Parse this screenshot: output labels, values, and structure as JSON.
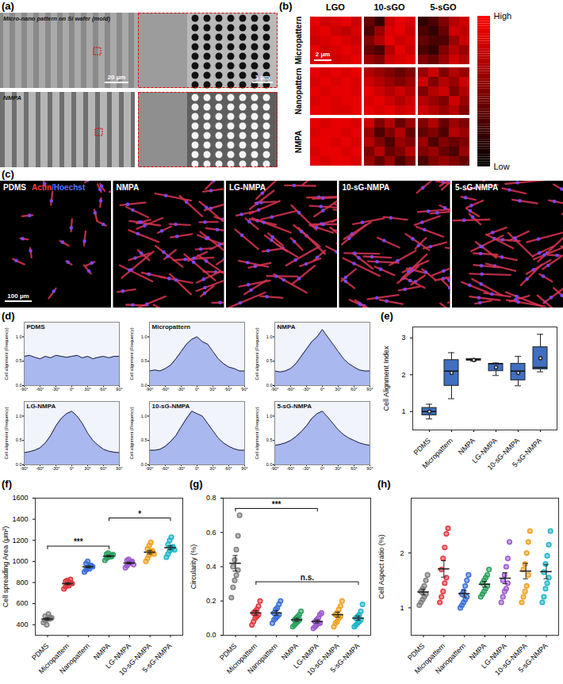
{
  "chart_data": [
    {
      "type": "image",
      "panel": "(a)",
      "labels": [
        "Micro-nano pattern on Si wafer (mold)",
        "NMPA"
      ],
      "scale_bars": [
        "20 µm",
        "1 µm"
      ]
    },
    {
      "type": "heatmap",
      "panel": "(b)",
      "columns": [
        "LGO",
        "10-sGO",
        "5-sGO"
      ],
      "rows": [
        "Micropattern",
        "Nanopattern",
        "NMPA"
      ],
      "cells": [
        [
          [
            [
              0.9,
              0.8,
              0.85,
              0.9,
              0.8
            ],
            [
              0.85,
              0.9,
              0.8,
              0.75,
              0.85
            ],
            [
              0.8,
              0.85,
              0.9,
              0.85,
              0.8
            ],
            [
              0.9,
              0.8,
              0.85,
              0.9,
              0.85
            ],
            [
              0.85,
              0.9,
              0.8,
              0.85,
              0.9
            ]
          ],
          [
            [
              0.4,
              0.2,
              0.8,
              0.9,
              0.85
            ],
            [
              0.3,
              0.6,
              0.85,
              0.9,
              0.8
            ],
            [
              0.5,
              0.7,
              0.9,
              0.8,
              0.85
            ],
            [
              0.4,
              0.3,
              0.7,
              0.9,
              0.8
            ],
            [
              0.6,
              0.5,
              0.8,
              0.85,
              0.9
            ]
          ],
          [
            [
              0.2,
              0.3,
              0.5,
              0.7,
              0.8
            ],
            [
              0.3,
              0.2,
              0.4,
              0.8,
              0.75
            ],
            [
              0.4,
              0.3,
              0.3,
              0.6,
              0.8
            ],
            [
              0.3,
              0.2,
              0.5,
              0.7,
              0.6
            ],
            [
              0.5,
              0.4,
              0.6,
              0.8,
              0.7
            ]
          ]
        ],
        [
          [
            [
              0.9,
              0.85,
              0.9,
              0.85,
              0.9
            ],
            [
              0.85,
              0.9,
              0.85,
              0.9,
              0.85
            ],
            [
              0.9,
              0.85,
              0.9,
              0.9,
              0.85
            ],
            [
              0.85,
              0.9,
              0.85,
              0.9,
              0.9
            ],
            [
              0.9,
              0.9,
              0.85,
              0.85,
              0.9
            ]
          ],
          [
            [
              0.7,
              0.6,
              0.5,
              0.4,
              0.5
            ],
            [
              0.8,
              0.7,
              0.6,
              0.5,
              0.6
            ],
            [
              0.9,
              0.8,
              0.7,
              0.8,
              0.7
            ],
            [
              0.85,
              0.9,
              0.8,
              0.7,
              0.8
            ],
            [
              0.9,
              0.85,
              0.9,
              0.8,
              0.85
            ]
          ],
          [
            [
              0.6,
              0.8,
              0.5,
              0.7,
              0.6
            ],
            [
              0.8,
              0.5,
              0.7,
              0.6,
              0.8
            ],
            [
              0.5,
              0.7,
              0.8,
              0.5,
              0.7
            ],
            [
              0.7,
              0.6,
              0.5,
              0.8,
              0.6
            ],
            [
              0.8,
              0.7,
              0.6,
              0.7,
              0.5
            ]
          ]
        ],
        [
          [
            [
              0.9,
              0.85,
              0.9,
              0.9,
              0.85
            ],
            [
              0.85,
              0.9,
              0.9,
              0.85,
              0.9
            ],
            [
              0.9,
              0.9,
              0.85,
              0.9,
              0.85
            ],
            [
              0.85,
              0.9,
              0.9,
              0.85,
              0.9
            ],
            [
              0.9,
              0.85,
              0.9,
              0.9,
              0.85
            ]
          ],
          [
            [
              0.8,
              0.5,
              0.7,
              0.4,
              0.6
            ],
            [
              0.6,
              0.3,
              0.5,
              0.7,
              0.4
            ],
            [
              0.7,
              0.5,
              0.3,
              0.6,
              0.5
            ],
            [
              0.5,
              0.7,
              0.4,
              0.5,
              0.7
            ],
            [
              0.6,
              0.4,
              0.6,
              0.3,
              0.5
            ]
          ],
          [
            [
              0.5,
              0.7,
              0.4,
              0.6,
              0.5
            ],
            [
              0.4,
              0.5,
              0.3,
              0.7,
              0.6
            ],
            [
              0.6,
              0.3,
              0.5,
              0.4,
              0.5
            ],
            [
              0.5,
              0.6,
              0.4,
              0.3,
              0.6
            ],
            [
              0.3,
              0.5,
              0.6,
              0.5,
              0.4
            ]
          ]
        ]
      ],
      "colorbar_range": [
        0,
        1
      ],
      "colorbar_ticks": [
        {
          "value": 1,
          "label": "High"
        },
        {
          "value": 0,
          "label": "Low"
        }
      ],
      "scale_bar": "2 µm"
    },
    {
      "type": "image",
      "panel": "(c)",
      "panels": [
        "PDMS",
        "NMPA",
        "LG-NMPA",
        "10-sG-NMPA",
        "5-sG-NMPA"
      ],
      "channels": [
        {
          "name": "Actin",
          "color": "#ff3b3b"
        },
        {
          "name": "/Hoechst",
          "color": "#5a73ff"
        }
      ],
      "scale_bar": "100 µm"
    },
    {
      "type": "area",
      "panel": "(d)",
      "y_label": "Cell alignment (Frequency)",
      "color": "#a9b8ee",
      "x": [
        -90,
        -80,
        -70,
        -60,
        -50,
        -40,
        -30,
        -20,
        -10,
        0,
        10,
        20,
        30,
        40,
        50,
        60,
        70,
        80,
        90
      ],
      "xlim": [
        -90,
        90
      ],
      "xticks": [
        {
          "value": -90,
          "label": "-90°"
        },
        {
          "value": -60,
          "label": "-60°"
        },
        {
          "value": -30,
          "label": "-30°"
        },
        {
          "value": 0,
          "label": "0°"
        },
        {
          "value": 30,
          "label": "30°"
        },
        {
          "value": 60,
          "label": "60°"
        },
        {
          "value": 90,
          "label": "90°"
        }
      ],
      "ylim": [
        0,
        1.3
      ],
      "yticks": [
        {
          "value": 0,
          "label": "0.0"
        },
        {
          "value": 0.5,
          "label": "0.5"
        },
        {
          "value": 1,
          "label": "1.0"
        }
      ],
      "series": [
        {
          "name": "PDMS",
          "values": [
            0.6,
            0.62,
            0.58,
            0.55,
            0.6,
            0.57,
            0.62,
            0.6,
            0.58,
            0.6,
            0.62,
            0.57,
            0.6,
            0.55,
            0.58,
            0.6,
            0.57,
            0.6,
            0.6
          ]
        },
        {
          "name": "Micropattern",
          "values": [
            0.3,
            0.32,
            0.3,
            0.35,
            0.42,
            0.55,
            0.7,
            0.85,
            0.95,
            1.0,
            0.9,
            0.85,
            0.7,
            0.55,
            0.45,
            0.38,
            0.35,
            0.3,
            0.3
          ]
        },
        {
          "name": "NMPA",
          "values": [
            0.3,
            0.28,
            0.3,
            0.35,
            0.45,
            0.6,
            0.75,
            0.9,
            1.0,
            1.15,
            1.0,
            0.85,
            0.7,
            0.55,
            0.45,
            0.38,
            0.32,
            0.3,
            0.3
          ]
        },
        {
          "name": "LG-NMPA",
          "values": [
            0.25,
            0.27,
            0.3,
            0.35,
            0.45,
            0.6,
            0.8,
            0.95,
            1.05,
            1.1,
            1.0,
            0.85,
            0.65,
            0.5,
            0.4,
            0.32,
            0.28,
            0.26,
            0.25
          ]
        },
        {
          "name": "10-sG-NMPA",
          "values": [
            0.3,
            0.3,
            0.32,
            0.38,
            0.48,
            0.6,
            0.78,
            0.95,
            1.1,
            1.05,
            1.0,
            0.85,
            0.7,
            0.55,
            0.45,
            0.38,
            0.33,
            0.3,
            0.3
          ]
        },
        {
          "name": "5-sG-NMPA",
          "values": [
            0.4,
            0.42,
            0.45,
            0.5,
            0.58,
            0.68,
            0.8,
            0.95,
            1.05,
            1.1,
            0.98,
            0.85,
            0.72,
            0.62,
            0.55,
            0.5,
            0.45,
            0.42,
            0.4
          ]
        }
      ]
    },
    {
      "type": "box",
      "panel": "(e)",
      "y_label": "Cell Alignment Index",
      "color": "#3f6fc0",
      "categories": [
        "PDMS",
        "Micropattern",
        "NMPA",
        "LG-NMPA",
        "10-sG-NMPA",
        "5-sG-NMPA"
      ],
      "boxes": [
        {
          "min": 0.8,
          "q1": 0.9,
          "median": 1.0,
          "q3": 1.1,
          "max": 1.2,
          "mean": 1.0
        },
        {
          "min": 1.35,
          "q1": 1.7,
          "median": 2.1,
          "q3": 2.4,
          "max": 2.6,
          "mean": 2.05
        },
        {
          "min": 2.37,
          "q1": 2.39,
          "median": 2.41,
          "q3": 2.43,
          "max": 2.44,
          "mean": 2.4
        },
        {
          "min": 1.98,
          "q1": 2.1,
          "median": 2.3,
          "q3": 2.3,
          "max": 2.32,
          "mean": 2.2
        },
        {
          "min": 1.7,
          "q1": 1.85,
          "median": 2.1,
          "q3": 2.3,
          "max": 2.5,
          "mean": 2.05
        },
        {
          "min": 2.08,
          "q1": 2.15,
          "median": 2.2,
          "q3": 2.75,
          "max": 3.1,
          "mean": 2.45
        }
      ],
      "ylim": [
        0.5,
        3.3
      ],
      "yticks": [
        1,
        2,
        3
      ]
    },
    {
      "type": "scatter",
      "panel": "(f)",
      "y_label": "Cell spreading Area (μm²)",
      "categories": [
        "PDMS",
        "Micropattern",
        "Nanopattern",
        "NMPA",
        "LG-NMPA",
        "10-sG-NMPA",
        "5-sG-NMPA"
      ],
      "colors": [
        "#7f7f7f",
        "#e0393e",
        "#3a6fd8",
        "#2ca25f",
        "#9b59d0",
        "#f0a020",
        "#1fb5c9"
      ],
      "points": [
        [
          420,
          440,
          450,
          460,
          470,
          480,
          400,
          500,
          455,
          465
        ],
        [
          740,
          760,
          780,
          790,
          800,
          810,
          820,
          770,
          830,
          790
        ],
        [
          900,
          920,
          940,
          950,
          960,
          980,
          1000,
          930,
          960,
          950
        ],
        [
          1010,
          1030,
          1040,
          1050,
          1060,
          1070,
          1080,
          1050,
          1045,
          1065
        ],
        [
          940,
          960,
          980,
          990,
          1000,
          1010,
          1020,
          985,
          995,
          970
        ],
        [
          1000,
          1030,
          1060,
          1080,
          1100,
          1120,
          1150,
          1180,
          1090,
          1070
        ],
        [
          1040,
          1070,
          1100,
          1120,
          1140,
          1160,
          1200,
          1230,
          1130,
          1110
        ]
      ],
      "means": [
        454,
        789,
        949,
        1050,
        985,
        1088,
        1130
      ],
      "errors": [
        10,
        9,
        9,
        7,
        8,
        17,
        18
      ],
      "ylim": [
        300,
        1600
      ],
      "yticks": [
        400,
        600,
        800,
        1000,
        1200,
        1400,
        1600
      ],
      "annotations": [
        {
          "from": "PDMS",
          "to": "NMPA",
          "text": "***"
        },
        {
          "from": "NMPA",
          "to": "5-sG-NMPA",
          "text": "*"
        }
      ]
    },
    {
      "type": "scatter",
      "panel": "(g)",
      "y_label": "Circularity (%)",
      "categories": [
        "PDMS",
        "Micropattern",
        "Nanopattern",
        "NMPA",
        "LG-NMPA",
        "10-sG-NMPA",
        "5-sG-NMPA"
      ],
      "colors": [
        "#7f7f7f",
        "#e0393e",
        "#3a6fd8",
        "#2ca25f",
        "#9b59d0",
        "#f0a020",
        "#1fb5c9"
      ],
      "points": [
        [
          0.22,
          0.28,
          0.32,
          0.35,
          0.38,
          0.4,
          0.44,
          0.5,
          0.58,
          0.7
        ],
        [
          0.06,
          0.08,
          0.1,
          0.11,
          0.12,
          0.13,
          0.14,
          0.15,
          0.17,
          0.2
        ],
        [
          0.07,
          0.09,
          0.1,
          0.11,
          0.12,
          0.13,
          0.15,
          0.16,
          0.18,
          0.2
        ],
        [
          0.05,
          0.06,
          0.07,
          0.08,
          0.09,
          0.09,
          0.1,
          0.11,
          0.12,
          0.14
        ],
        [
          0.04,
          0.05,
          0.06,
          0.07,
          0.07,
          0.08,
          0.09,
          0.1,
          0.12,
          0.13
        ],
        [
          0.05,
          0.07,
          0.08,
          0.1,
          0.11,
          0.12,
          0.13,
          0.15,
          0.17,
          0.2
        ],
        [
          0.05,
          0.06,
          0.07,
          0.08,
          0.09,
          0.1,
          0.11,
          0.12,
          0.14,
          0.18
        ]
      ],
      "means": [
        0.42,
        0.13,
        0.13,
        0.09,
        0.08,
        0.12,
        0.1
      ],
      "errors": [
        0.045,
        0.013,
        0.013,
        0.009,
        0.009,
        0.015,
        0.012
      ],
      "ylim": [
        0,
        0.8
      ],
      "yticks": [
        {
          "value": 0,
          "label": "0.0"
        },
        {
          "value": 0.2,
          "label": "0.2"
        },
        {
          "value": 0.4,
          "label": "0.4"
        },
        {
          "value": 0.6,
          "label": "0.6"
        },
        {
          "value": 0.8,
          "label": "0.8"
        }
      ],
      "annotations": [
        {
          "from": "PDMS",
          "to": "LG-NMPA",
          "text": "***"
        },
        {
          "from": "Micropattern",
          "to": "5-sG-NMPA",
          "text": "n.s."
        }
      ]
    },
    {
      "type": "scatter",
      "panel": "(h)",
      "y_label": "Cell Aspect ratio (%)",
      "categories": [
        "PDMS",
        "Micropattern",
        "Nanopattern",
        "NMPA",
        "LG-NMPA",
        "10-sG-NMPA",
        "5-sG-NMPA"
      ],
      "colors": [
        "#7f7f7f",
        "#e0393e",
        "#3a6fd8",
        "#2ca25f",
        "#9b59d0",
        "#f0a020",
        "#1fb5c9"
      ],
      "points": [
        [
          1.05,
          1.1,
          1.15,
          1.2,
          1.25,
          1.3,
          1.35,
          1.4,
          1.5,
          1.6
        ],
        [
          1.1,
          1.2,
          1.3,
          1.45,
          1.55,
          1.7,
          1.9,
          2.1,
          2.35,
          2.45
        ],
        [
          1.0,
          1.05,
          1.1,
          1.15,
          1.2,
          1.25,
          1.3,
          1.4,
          1.5,
          1.6
        ],
        [
          1.2,
          1.25,
          1.3,
          1.35,
          1.4,
          1.45,
          1.5,
          1.55,
          1.6,
          1.7
        ],
        [
          1.1,
          1.2,
          1.3,
          1.35,
          1.45,
          1.5,
          1.6,
          1.75,
          1.9,
          2.2
        ],
        [
          1.1,
          1.2,
          1.3,
          1.4,
          1.6,
          1.7,
          1.8,
          2.0,
          2.2,
          2.4
        ],
        [
          1.1,
          1.2,
          1.35,
          1.45,
          1.55,
          1.65,
          1.8,
          1.95,
          2.15,
          2.4
        ]
      ],
      "means": [
        1.29,
        1.71,
        1.26,
        1.43,
        1.54,
        1.67,
        1.66
      ],
      "errors": [
        0.05,
        0.15,
        0.06,
        0.05,
        0.1,
        0.14,
        0.13
      ],
      "ylim": [
        0.5,
        3
      ],
      "yticks": [
        1,
        2
      ]
    }
  ]
}
